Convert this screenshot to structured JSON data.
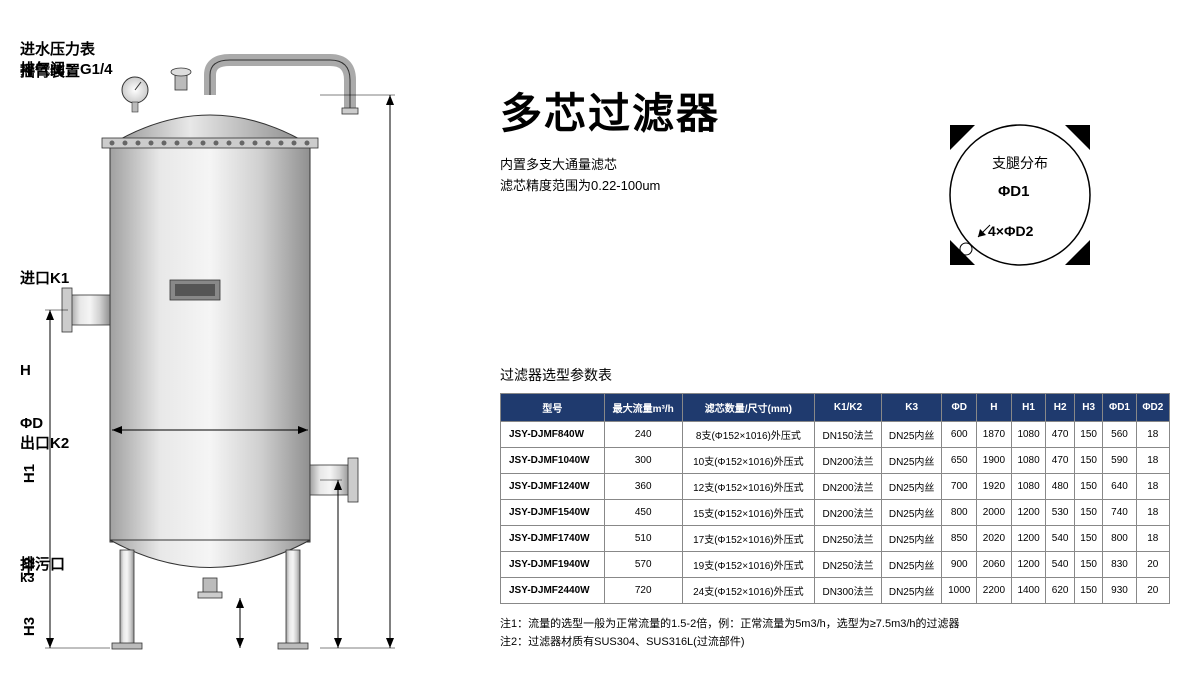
{
  "title": "多芯过滤器",
  "subtitle_line1": "内置多支大通量滤芯",
  "subtitle_line2": "滤芯精度范围为0.22-100um",
  "labels": {
    "inlet_pressure": "进水压力表",
    "exhaust_valve": "排气阀：G1/4",
    "swing_arm": "摇臂装置",
    "inlet_k1": "进口K1",
    "outlet_k2": "出口K2",
    "drain": "排污口",
    "drain_sub": "k3",
    "h": "H",
    "h1": "H1",
    "h2": "H2",
    "h3": "H3",
    "phi_d": "ΦD"
  },
  "leg_diagram": {
    "center": "支腿分布",
    "phi_d1": "ΦD1",
    "count_d2": "4×ΦD2"
  },
  "table": {
    "title": "过滤器选型参数表",
    "header": [
      "型号",
      "最大流量m³/h",
      "滤芯数量/尺寸(mm)",
      "K1/K2",
      "K3",
      "ΦD",
      "H",
      "H1",
      "H2",
      "H3",
      "ΦD1",
      "ΦD2"
    ],
    "rows": [
      [
        "JSY-DJMF840W",
        "240",
        "8支(Φ152×1016)外压式",
        "DN150法兰",
        "DN25内丝",
        "600",
        "1870",
        "1080",
        "470",
        "150",
        "560",
        "18"
      ],
      [
        "JSY-DJMF1040W",
        "300",
        "10支(Φ152×1016)外压式",
        "DN200法兰",
        "DN25内丝",
        "650",
        "1900",
        "1080",
        "470",
        "150",
        "590",
        "18"
      ],
      [
        "JSY-DJMF1240W",
        "360",
        "12支(Φ152×1016)外压式",
        "DN200法兰",
        "DN25内丝",
        "700",
        "1920",
        "1080",
        "480",
        "150",
        "640",
        "18"
      ],
      [
        "JSY-DJMF1540W",
        "450",
        "15支(Φ152×1016)外压式",
        "DN200法兰",
        "DN25内丝",
        "800",
        "2000",
        "1200",
        "530",
        "150",
        "740",
        "18"
      ],
      [
        "JSY-DJMF1740W",
        "510",
        "17支(Φ152×1016)外压式",
        "DN250法兰",
        "DN25内丝",
        "850",
        "2020",
        "1200",
        "540",
        "150",
        "800",
        "18"
      ],
      [
        "JSY-DJMF1940W",
        "570",
        "19支(Φ152×1016)外压式",
        "DN250法兰",
        "DN25内丝",
        "900",
        "2060",
        "1200",
        "540",
        "150",
        "830",
        "20"
      ],
      [
        "JSY-DJMF2440W",
        "720",
        "24支(Φ152×1016)外压式",
        "DN300法兰",
        "DN25内丝",
        "1000",
        "2200",
        "1400",
        "620",
        "150",
        "930",
        "20"
      ]
    ]
  },
  "notes": {
    "note1": "注1：流量的选型一般为正常流量的1.5-2倍，例：正常流量为5m3/h，选型为≥7.5m3/h的过滤器",
    "note2": "注2：过滤器材质有SUS304、SUS316L(过流部件)"
  },
  "colors": {
    "header_bg": "#1f3a6e",
    "border": "#888888",
    "tank_fill1": "#e8e8e8",
    "tank_fill2": "#b0b0b0",
    "tank_fill3": "#d8d8d8"
  }
}
